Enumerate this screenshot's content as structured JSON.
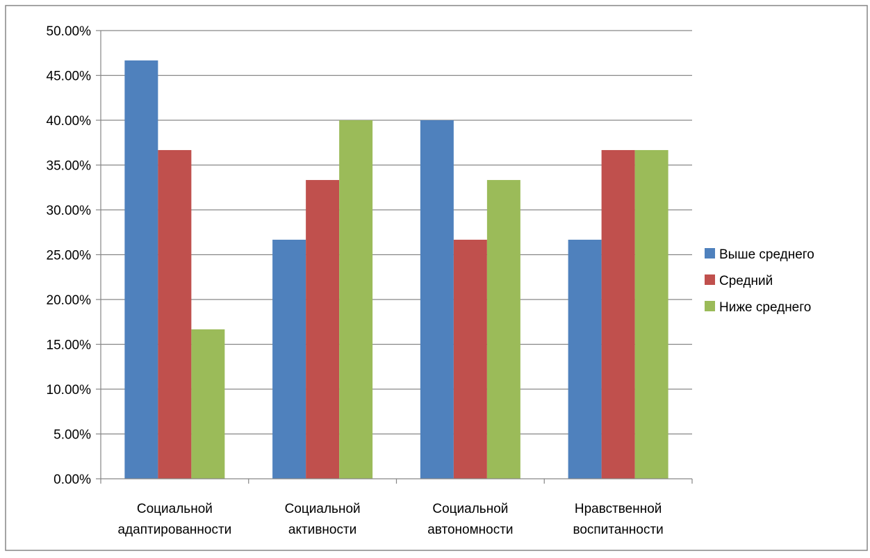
{
  "chart_data": {
    "type": "bar",
    "title": "",
    "xlabel": "",
    "ylabel": "",
    "categories": [
      [
        "Социальной",
        "адаптированности"
      ],
      [
        "Социальной",
        "активности"
      ],
      [
        "Социальной",
        "автономности"
      ],
      [
        "Нравственной",
        "воспитанности"
      ]
    ],
    "series": [
      {
        "name": "Выше среднего",
        "color": "#4f81bd",
        "values": [
          46.67,
          26.67,
          40.0,
          26.67
        ]
      },
      {
        "name": "Средний",
        "color": "#c0504d",
        "values": [
          36.67,
          33.33,
          26.67,
          36.67
        ]
      },
      {
        "name": "Ниже среднего",
        "color": "#9bbb59",
        "values": [
          16.67,
          40.0,
          33.33,
          36.67
        ]
      }
    ],
    "ylim": [
      0,
      50
    ],
    "yticks": [
      "0.00%",
      "5.00%",
      "10.00%",
      "15.00%",
      "20.00%",
      "25.00%",
      "30.00%",
      "35.00%",
      "40.00%",
      "45.00%",
      "50.00%"
    ],
    "grid": true,
    "legend_position": "right"
  }
}
